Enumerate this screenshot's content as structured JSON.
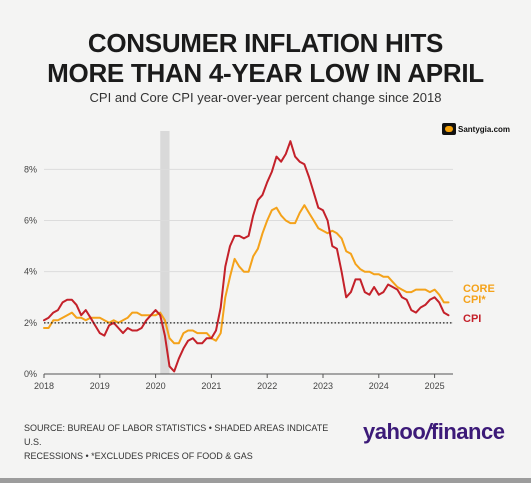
{
  "title_line1": "CONSUMER INFLATION HITS",
  "title_line2": "MORE THAN 4-YEAR LOW IN APRIL",
  "subtitle": "CPI and Core CPI year-over-year percent change since 2018",
  "watermark": "Santygia.com",
  "footer_line1": "SOURCE: BUREAU OF LABOR STATISTICS • SHADED AREAS INDICATE U.S.",
  "footer_line2": "RECESSIONS • *EXCLUDES PRICES OF FOOD & GAS",
  "brand_yahoo": "yahoo",
  "brand_slash": "/",
  "brand_finance": "finance",
  "colors": {
    "cpi": "#c4212a",
    "core": "#f4a21a",
    "recession": "#d9d9d9",
    "background": "#f4f4f3"
  },
  "chart_data": {
    "type": "line",
    "title": "CONSUMER INFLATION HITS MORE THAN 4-YEAR LOW IN APRIL",
    "subtitle": "CPI and Core CPI year-over-year percent change since 2018",
    "x_ticks": [
      "2018",
      "2019",
      "2020",
      "2021",
      "2022",
      "2023",
      "2024",
      "2025"
    ],
    "y_ticks": [
      "0%",
      "2%",
      "4%",
      "6%",
      "8%"
    ],
    "xlim": [
      "2018-01",
      "2025-05"
    ],
    "ylim": [
      0,
      9.5
    ],
    "reference_line": {
      "y": 2,
      "style": "dotted"
    },
    "recession": {
      "start": "2020-02",
      "end": "2020-04"
    },
    "grid": true,
    "series": [
      {
        "name": "CPI",
        "color": "#c4212a",
        "values": [
          [
            "2018-01",
            2.1
          ],
          [
            "2018-02",
            2.2
          ],
          [
            "2018-03",
            2.4
          ],
          [
            "2018-04",
            2.5
          ],
          [
            "2018-05",
            2.8
          ],
          [
            "2018-06",
            2.9
          ],
          [
            "2018-07",
            2.9
          ],
          [
            "2018-08",
            2.7
          ],
          [
            "2018-09",
            2.3
          ],
          [
            "2018-10",
            2.5
          ],
          [
            "2018-11",
            2.2
          ],
          [
            "2018-12",
            1.9
          ],
          [
            "2019-01",
            1.6
          ],
          [
            "2019-02",
            1.5
          ],
          [
            "2019-03",
            1.9
          ],
          [
            "2019-04",
            2.0
          ],
          [
            "2019-05",
            1.8
          ],
          [
            "2019-06",
            1.6
          ],
          [
            "2019-07",
            1.8
          ],
          [
            "2019-08",
            1.7
          ],
          [
            "2019-09",
            1.7
          ],
          [
            "2019-10",
            1.8
          ],
          [
            "2019-11",
            2.1
          ],
          [
            "2019-12",
            2.3
          ],
          [
            "2020-01",
            2.5
          ],
          [
            "2020-02",
            2.3
          ],
          [
            "2020-03",
            1.5
          ],
          [
            "2020-04",
            0.3
          ],
          [
            "2020-05",
            0.1
          ],
          [
            "2020-06",
            0.6
          ],
          [
            "2020-07",
            1.0
          ],
          [
            "2020-08",
            1.3
          ],
          [
            "2020-09",
            1.4
          ],
          [
            "2020-10",
            1.2
          ],
          [
            "2020-11",
            1.2
          ],
          [
            "2020-12",
            1.4
          ],
          [
            "2021-01",
            1.4
          ],
          [
            "2021-02",
            1.7
          ],
          [
            "2021-03",
            2.6
          ],
          [
            "2021-04",
            4.2
          ],
          [
            "2021-05",
            5.0
          ],
          [
            "2021-06",
            5.4
          ],
          [
            "2021-07",
            5.4
          ],
          [
            "2021-08",
            5.3
          ],
          [
            "2021-09",
            5.4
          ],
          [
            "2021-10",
            6.2
          ],
          [
            "2021-11",
            6.8
          ],
          [
            "2021-12",
            7.0
          ],
          [
            "2022-01",
            7.5
          ],
          [
            "2022-02",
            7.9
          ],
          [
            "2022-03",
            8.5
          ],
          [
            "2022-04",
            8.3
          ],
          [
            "2022-05",
            8.6
          ],
          [
            "2022-06",
            9.1
          ],
          [
            "2022-07",
            8.5
          ],
          [
            "2022-08",
            8.3
          ],
          [
            "2022-09",
            8.2
          ],
          [
            "2022-10",
            7.7
          ],
          [
            "2022-11",
            7.1
          ],
          [
            "2022-12",
            6.5
          ],
          [
            "2023-01",
            6.4
          ],
          [
            "2023-02",
            6.0
          ],
          [
            "2023-03",
            5.0
          ],
          [
            "2023-04",
            4.9
          ],
          [
            "2023-05",
            4.0
          ],
          [
            "2023-06",
            3.0
          ],
          [
            "2023-07",
            3.2
          ],
          [
            "2023-08",
            3.7
          ],
          [
            "2023-09",
            3.7
          ],
          [
            "2023-10",
            3.2
          ],
          [
            "2023-11",
            3.1
          ],
          [
            "2023-12",
            3.4
          ],
          [
            "2024-01",
            3.1
          ],
          [
            "2024-02",
            3.2
          ],
          [
            "2024-03",
            3.5
          ],
          [
            "2024-04",
            3.4
          ],
          [
            "2024-05",
            3.3
          ],
          [
            "2024-06",
            3.0
          ],
          [
            "2024-07",
            2.9
          ],
          [
            "2024-08",
            2.5
          ],
          [
            "2024-09",
            2.4
          ],
          [
            "2024-10",
            2.6
          ],
          [
            "2024-11",
            2.7
          ],
          [
            "2024-12",
            2.9
          ],
          [
            "2025-01",
            3.0
          ],
          [
            "2025-02",
            2.8
          ],
          [
            "2025-03",
            2.4
          ],
          [
            "2025-04",
            2.3
          ]
        ]
      },
      {
        "name": "CORE CPI*",
        "color": "#f4a21a",
        "values": [
          [
            "2018-01",
            1.8
          ],
          [
            "2018-02",
            1.8
          ],
          [
            "2018-03",
            2.1
          ],
          [
            "2018-04",
            2.1
          ],
          [
            "2018-05",
            2.2
          ],
          [
            "2018-06",
            2.3
          ],
          [
            "2018-07",
            2.4
          ],
          [
            "2018-08",
            2.2
          ],
          [
            "2018-09",
            2.2
          ],
          [
            "2018-10",
            2.1
          ],
          [
            "2018-11",
            2.2
          ],
          [
            "2018-12",
            2.2
          ],
          [
            "2019-01",
            2.2
          ],
          [
            "2019-02",
            2.1
          ],
          [
            "2019-03",
            2.0
          ],
          [
            "2019-04",
            2.1
          ],
          [
            "2019-05",
            2.0
          ],
          [
            "2019-06",
            2.1
          ],
          [
            "2019-07",
            2.2
          ],
          [
            "2019-08",
            2.4
          ],
          [
            "2019-09",
            2.4
          ],
          [
            "2019-10",
            2.3
          ],
          [
            "2019-11",
            2.3
          ],
          [
            "2019-12",
            2.3
          ],
          [
            "2020-01",
            2.3
          ],
          [
            "2020-02",
            2.4
          ],
          [
            "2020-03",
            2.1
          ],
          [
            "2020-04",
            1.4
          ],
          [
            "2020-05",
            1.2
          ],
          [
            "2020-06",
            1.2
          ],
          [
            "2020-07",
            1.6
          ],
          [
            "2020-08",
            1.7
          ],
          [
            "2020-09",
            1.7
          ],
          [
            "2020-10",
            1.6
          ],
          [
            "2020-11",
            1.6
          ],
          [
            "2020-12",
            1.6
          ],
          [
            "2021-01",
            1.4
          ],
          [
            "2021-02",
            1.3
          ],
          [
            "2021-03",
            1.6
          ],
          [
            "2021-04",
            3.0
          ],
          [
            "2021-05",
            3.8
          ],
          [
            "2021-06",
            4.5
          ],
          [
            "2021-07",
            4.2
          ],
          [
            "2021-08",
            4.0
          ],
          [
            "2021-09",
            4.0
          ],
          [
            "2021-10",
            4.6
          ],
          [
            "2021-11",
            4.9
          ],
          [
            "2021-12",
            5.5
          ],
          [
            "2022-01",
            6.0
          ],
          [
            "2022-02",
            6.4
          ],
          [
            "2022-03",
            6.5
          ],
          [
            "2022-04",
            6.2
          ],
          [
            "2022-05",
            6.0
          ],
          [
            "2022-06",
            5.9
          ],
          [
            "2022-07",
            5.9
          ],
          [
            "2022-08",
            6.3
          ],
          [
            "2022-09",
            6.6
          ],
          [
            "2022-10",
            6.3
          ],
          [
            "2022-11",
            6.0
          ],
          [
            "2022-12",
            5.7
          ],
          [
            "2023-01",
            5.6
          ],
          [
            "2023-02",
            5.5
          ],
          [
            "2023-03",
            5.6
          ],
          [
            "2023-04",
            5.5
          ],
          [
            "2023-05",
            5.3
          ],
          [
            "2023-06",
            4.8
          ],
          [
            "2023-07",
            4.7
          ],
          [
            "2023-08",
            4.3
          ],
          [
            "2023-09",
            4.1
          ],
          [
            "2023-10",
            4.0
          ],
          [
            "2023-11",
            4.0
          ],
          [
            "2023-12",
            3.9
          ],
          [
            "2024-01",
            3.9
          ],
          [
            "2024-02",
            3.8
          ],
          [
            "2024-03",
            3.8
          ],
          [
            "2024-04",
            3.6
          ],
          [
            "2024-05",
            3.4
          ],
          [
            "2024-06",
            3.3
          ],
          [
            "2024-07",
            3.2
          ],
          [
            "2024-08",
            3.2
          ],
          [
            "2024-09",
            3.3
          ],
          [
            "2024-10",
            3.3
          ],
          [
            "2024-11",
            3.3
          ],
          [
            "2024-12",
            3.2
          ],
          [
            "2025-01",
            3.3
          ],
          [
            "2025-02",
            3.1
          ],
          [
            "2025-03",
            2.8
          ],
          [
            "2025-04",
            2.8
          ]
        ]
      }
    ],
    "end_labels": {
      "core_line1": "CORE",
      "core_line2": "CPI*",
      "cpi": "CPI"
    }
  }
}
